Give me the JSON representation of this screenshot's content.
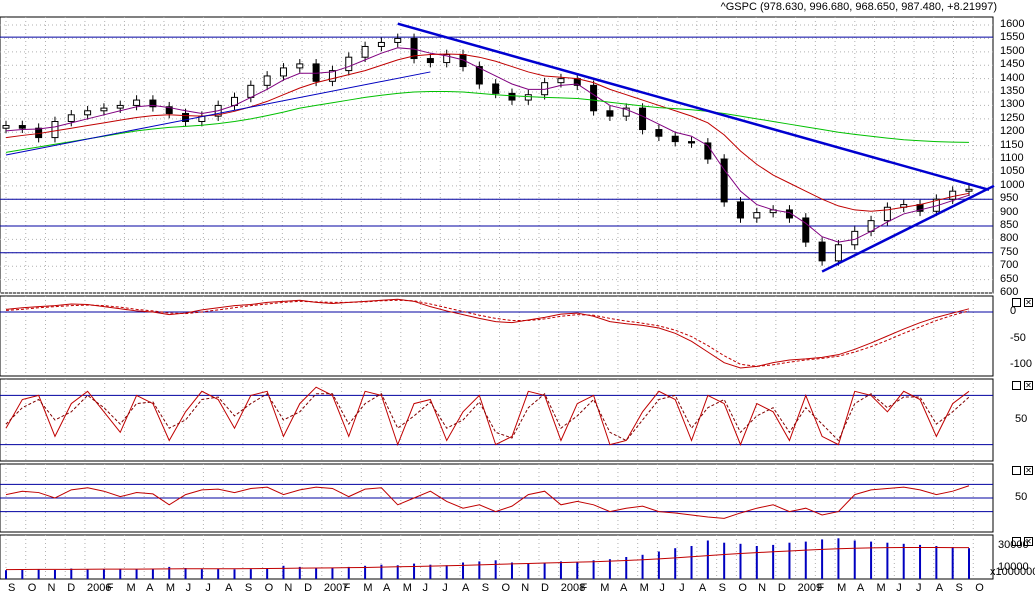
{
  "ticker": {
    "symbol": "^GSPC",
    "values": "(978.630, 996.680, 968.650, 987.480, +8.21997)"
  },
  "price_panel": {
    "y_ticks": [
      "1600",
      "1550",
      "1500",
      "1450",
      "1400",
      "1350",
      "1300",
      "1250",
      "1200",
      "1150",
      "1100",
      "1050",
      "1000",
      "950",
      "900",
      "850",
      "800",
      "750",
      "700",
      "650",
      "600"
    ]
  },
  "macd_panel": {
    "y_ticks": [
      "0",
      "-50",
      "-100"
    ]
  },
  "stoch_panel": {
    "y_ticks": [
      "50"
    ]
  },
  "rsi_panel": {
    "y_ticks": [
      "50"
    ]
  },
  "volume_panel": {
    "y_ticks": [
      "30000",
      "10000"
    ],
    "unit": "x1000000"
  },
  "x_axis": {
    "labels": [
      "S",
      "O",
      "N",
      "D",
      "2006",
      "F",
      "M",
      "A",
      "M",
      "J",
      "J",
      "A",
      "S",
      "O",
      "N",
      "D",
      "2007",
      "F",
      "M",
      "A",
      "M",
      "J",
      "J",
      "A",
      "S",
      "O",
      "N",
      "D",
      "2008",
      "F",
      "M",
      "A",
      "M",
      "J",
      "J",
      "A",
      "S",
      "O",
      "N",
      "D",
      "2009",
      "F",
      "M",
      "A",
      "M",
      "J",
      "J",
      "A",
      "S",
      "O"
    ]
  },
  "chart_data": [
    {
      "type": "candlestick",
      "panel": "price",
      "ylim": [
        600,
        1630
      ],
      "series": [
        {
          "name": "close",
          "values": [
            1225,
            1215,
            1180,
            1240,
            1265,
            1280,
            1290,
            1300,
            1320,
            1295,
            1270,
            1240,
            1260,
            1300,
            1330,
            1375,
            1410,
            1440,
            1455,
            1390,
            1430,
            1480,
            1520,
            1535,
            1550,
            1475,
            1460,
            1490,
            1445,
            1380,
            1345,
            1320,
            1340,
            1385,
            1400,
            1375,
            1280,
            1260,
            1290,
            1210,
            1185,
            1165,
            1160,
            1100,
            940,
            880,
            900,
            910,
            880,
            790,
            720,
            780,
            830,
            870,
            920,
            930,
            905,
            950,
            980,
            987
          ]
        },
        {
          "name": "ma-short",
          "values": [
            1205,
            1210,
            1212,
            1220,
            1235,
            1250,
            1265,
            1280,
            1295,
            1300,
            1292,
            1280,
            1270,
            1280,
            1300,
            1330,
            1360,
            1395,
            1420,
            1420,
            1425,
            1445,
            1470,
            1495,
            1515,
            1510,
            1495,
            1485,
            1470,
            1440,
            1410,
            1380,
            1360,
            1360,
            1375,
            1380,
            1340,
            1300,
            1285,
            1260,
            1230,
            1200,
            1185,
            1150,
            1060,
            980,
            930,
            910,
            900,
            860,
            810,
            790,
            800,
            830,
            865,
            895,
            910,
            925,
            945,
            965
          ]
        },
        {
          "name": "ma-mid",
          "values": [
            1180,
            1188,
            1195,
            1205,
            1215,
            1225,
            1235,
            1245,
            1255,
            1262,
            1265,
            1262,
            1260,
            1265,
            1278,
            1295,
            1315,
            1340,
            1365,
            1385,
            1400,
            1415,
            1430,
            1450,
            1470,
            1485,
            1490,
            1492,
            1490,
            1480,
            1465,
            1445,
            1425,
            1410,
            1405,
            1400,
            1385,
            1360,
            1340,
            1320,
            1300,
            1280,
            1260,
            1235,
            1190,
            1130,
            1080,
            1040,
            1010,
            980,
            950,
            925,
            910,
            905,
            910,
            920,
            930,
            945,
            960,
            972
          ]
        },
        {
          "name": "ma-long",
          "values": [
            1125,
            1135,
            1145,
            1155,
            1165,
            1175,
            1185,
            1195,
            1205,
            1212,
            1218,
            1222,
            1226,
            1232,
            1240,
            1250,
            1262,
            1275,
            1290,
            1300,
            1310,
            1320,
            1330,
            1338,
            1345,
            1350,
            1352,
            1352,
            1350,
            1345,
            1340,
            1336,
            1333,
            1330,
            1328,
            1326,
            1320,
            1312,
            1305,
            1298,
            1292,
            1288,
            1284,
            1278,
            1270,
            1260,
            1250,
            1240,
            1230,
            1220,
            1210,
            1200,
            1192,
            1185,
            1178,
            1172,
            1168,
            1165,
            1163,
            1162
          ]
        }
      ],
      "annotations": [
        "trendline-down",
        "trendline-up",
        "support-lines"
      ]
    },
    {
      "type": "line",
      "panel": "macd",
      "ylim": [
        -120,
        30
      ],
      "series": [
        {
          "name": "macd",
          "values": [
            5,
            8,
            10,
            12,
            15,
            14,
            10,
            6,
            2,
            0,
            -5,
            -2,
            4,
            8,
            12,
            14,
            18,
            20,
            22,
            18,
            16,
            18,
            20,
            22,
            24,
            20,
            10,
            2,
            -5,
            -12,
            -18,
            -20,
            -15,
            -10,
            -4,
            -2,
            -8,
            -18,
            -22,
            -25,
            -30,
            -40,
            -55,
            -75,
            -95,
            -105,
            -102,
            -95,
            -90,
            -88,
            -85,
            -80,
            -70,
            -58,
            -45,
            -32,
            -20,
            -10,
            -2,
            6
          ]
        },
        {
          "name": "signal",
          "values": [
            3,
            5,
            8,
            10,
            12,
            13,
            12,
            9,
            5,
            2,
            -2,
            -3,
            0,
            4,
            8,
            12,
            15,
            18,
            20,
            19,
            18,
            18,
            19,
            21,
            22,
            21,
            15,
            8,
            1,
            -6,
            -12,
            -16,
            -16,
            -13,
            -8,
            -5,
            -6,
            -12,
            -17,
            -21,
            -26,
            -34,
            -46,
            -63,
            -82,
            -98,
            -102,
            -99,
            -94,
            -90,
            -87,
            -83,
            -75,
            -65,
            -53,
            -40,
            -28,
            -16,
            -6,
            2
          ]
        }
      ]
    },
    {
      "type": "line",
      "panel": "stochastic",
      "ylim": [
        0,
        100
      ],
      "series": [
        {
          "name": "k",
          "values": [
            40,
            75,
            80,
            30,
            70,
            85,
            60,
            35,
            80,
            70,
            25,
            60,
            85,
            75,
            40,
            80,
            85,
            30,
            70,
            90,
            80,
            30,
            85,
            80,
            20,
            70,
            75,
            25,
            60,
            80,
            20,
            30,
            85,
            80,
            25,
            70,
            80,
            20,
            25,
            60,
            85,
            75,
            25,
            80,
            70,
            20,
            70,
            60,
            25,
            80,
            30,
            20,
            85,
            80,
            60,
            85,
            75,
            30,
            70,
            85
          ]
        },
        {
          "name": "d",
          "values": [
            45,
            65,
            75,
            50,
            60,
            80,
            65,
            45,
            70,
            72,
            40,
            50,
            75,
            78,
            55,
            70,
            82,
            50,
            60,
            82,
            82,
            45,
            70,
            82,
            40,
            55,
            72,
            40,
            50,
            72,
            35,
            28,
            65,
            82,
            40,
            55,
            75,
            35,
            25,
            50,
            75,
            80,
            40,
            65,
            75,
            35,
            55,
            65,
            35,
            65,
            45,
            25,
            70,
            82,
            65,
            78,
            78,
            45,
            60,
            78
          ]
        }
      ]
    },
    {
      "type": "line",
      "panel": "rsi",
      "ylim": [
        0,
        100
      ],
      "series": [
        {
          "name": "rsi",
          "values": [
            55,
            60,
            58,
            50,
            62,
            65,
            60,
            52,
            58,
            56,
            40,
            55,
            62,
            63,
            58,
            64,
            66,
            55,
            62,
            66,
            64,
            52,
            63,
            65,
            40,
            50,
            60,
            45,
            35,
            40,
            30,
            38,
            55,
            60,
            40,
            45,
            40,
            30,
            35,
            38,
            30,
            28,
            25,
            22,
            20,
            28,
            35,
            40,
            30,
            35,
            25,
            30,
            55,
            62,
            64,
            66,
            62,
            55,
            60,
            68
          ]
        }
      ]
    },
    {
      "type": "bar",
      "panel": "volume",
      "ylim": [
        0,
        40000
      ],
      "unit": "x1000000",
      "values": [
        8000,
        8500,
        9000,
        8200,
        9500,
        9000,
        8800,
        9200,
        8700,
        9500,
        11000,
        10000,
        9000,
        9500,
        8800,
        9000,
        9500,
        12000,
        11000,
        9800,
        10000,
        11000,
        12000,
        13000,
        12500,
        14000,
        13000,
        12500,
        15000,
        16000,
        17000,
        15000,
        14000,
        15000,
        16000,
        15500,
        17000,
        18000,
        20000,
        22000,
        25000,
        28000,
        30000,
        35000,
        33000,
        32000,
        30000,
        31000,
        33000,
        34000,
        36000,
        37000,
        35000,
        34000,
        33000,
        32000,
        31000,
        30000,
        29000,
        28000
      ],
      "series": [
        {
          "name": "volume-ma",
          "values": [
            8500,
            8600,
            8700,
            8700,
            8800,
            8900,
            9000,
            9000,
            9000,
            9100,
            9200,
            9300,
            9300,
            9300,
            9300,
            9400,
            9500,
            9700,
            9900,
            10000,
            10100,
            10300,
            10500,
            10800,
            11100,
            11400,
            11700,
            12000,
            12400,
            12800,
            13300,
            13700,
            14100,
            14500,
            14900,
            15300,
            15700,
            16200,
            16800,
            17500,
            18300,
            19200,
            20200,
            21300,
            22300,
            23200,
            24000,
            24800,
            25500,
            26200,
            26900,
            27500,
            28000,
            28300,
            28500,
            28600,
            28600,
            28600,
            28500,
            28500
          ]
        }
      ]
    }
  ]
}
